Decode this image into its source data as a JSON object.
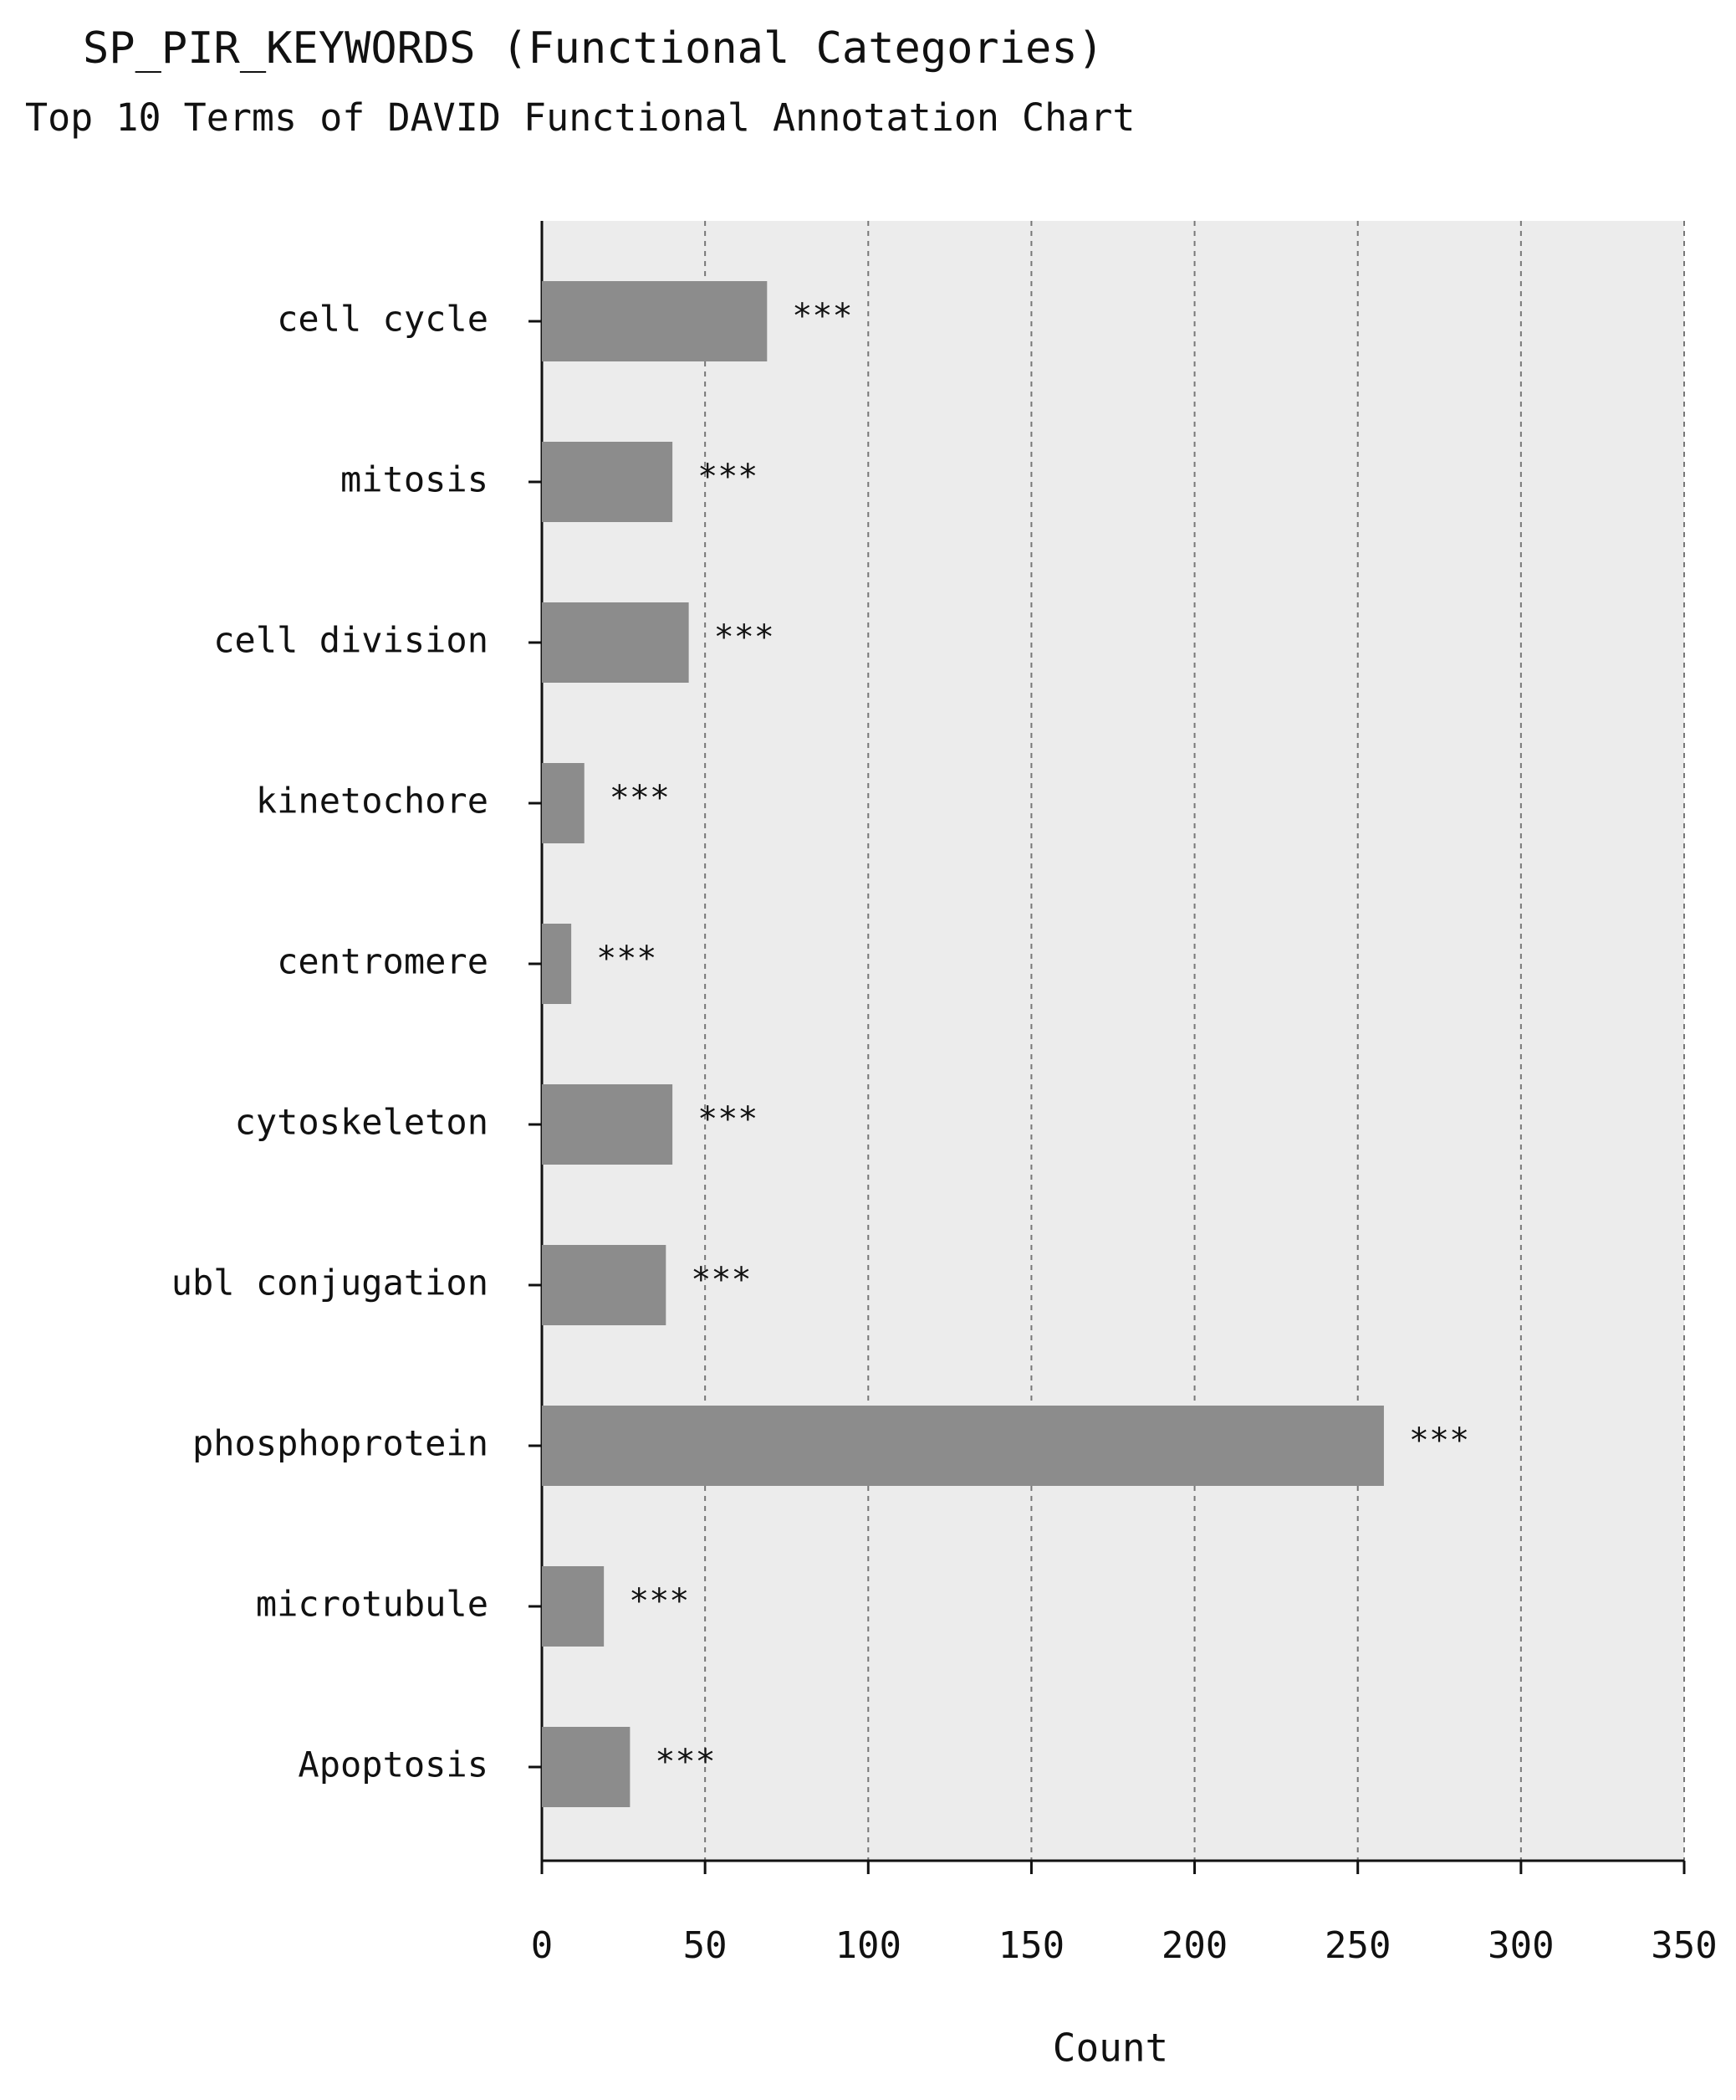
{
  "chart_data": {
    "type": "barh",
    "title": "SP_PIR_KEYWORDS (Functional Categories)",
    "subtitle": "Top 10 Terms of DAVID Functional Annotation Chart",
    "x_label": "Count",
    "categories": [
      "cell cycle",
      "mitosis",
      "cell division",
      "kinetochore",
      "centromere",
      "cytoskeleton",
      "ubl conjugation",
      "phosphoprotein",
      "microtubule",
      "Apoptosis"
    ],
    "values": [
      69,
      40,
      45,
      13,
      9,
      40,
      38,
      258,
      19,
      27
    ],
    "annotations": [
      "***",
      "***",
      "***",
      "***",
      "***",
      "***",
      "***",
      "***",
      "***",
      "***"
    ],
    "color": "#8c8c8c",
    "xlim": [
      0,
      350
    ],
    "xticks": [
      0,
      50,
      100,
      150,
      200,
      250,
      300,
      350
    ],
    "grid": true
  }
}
